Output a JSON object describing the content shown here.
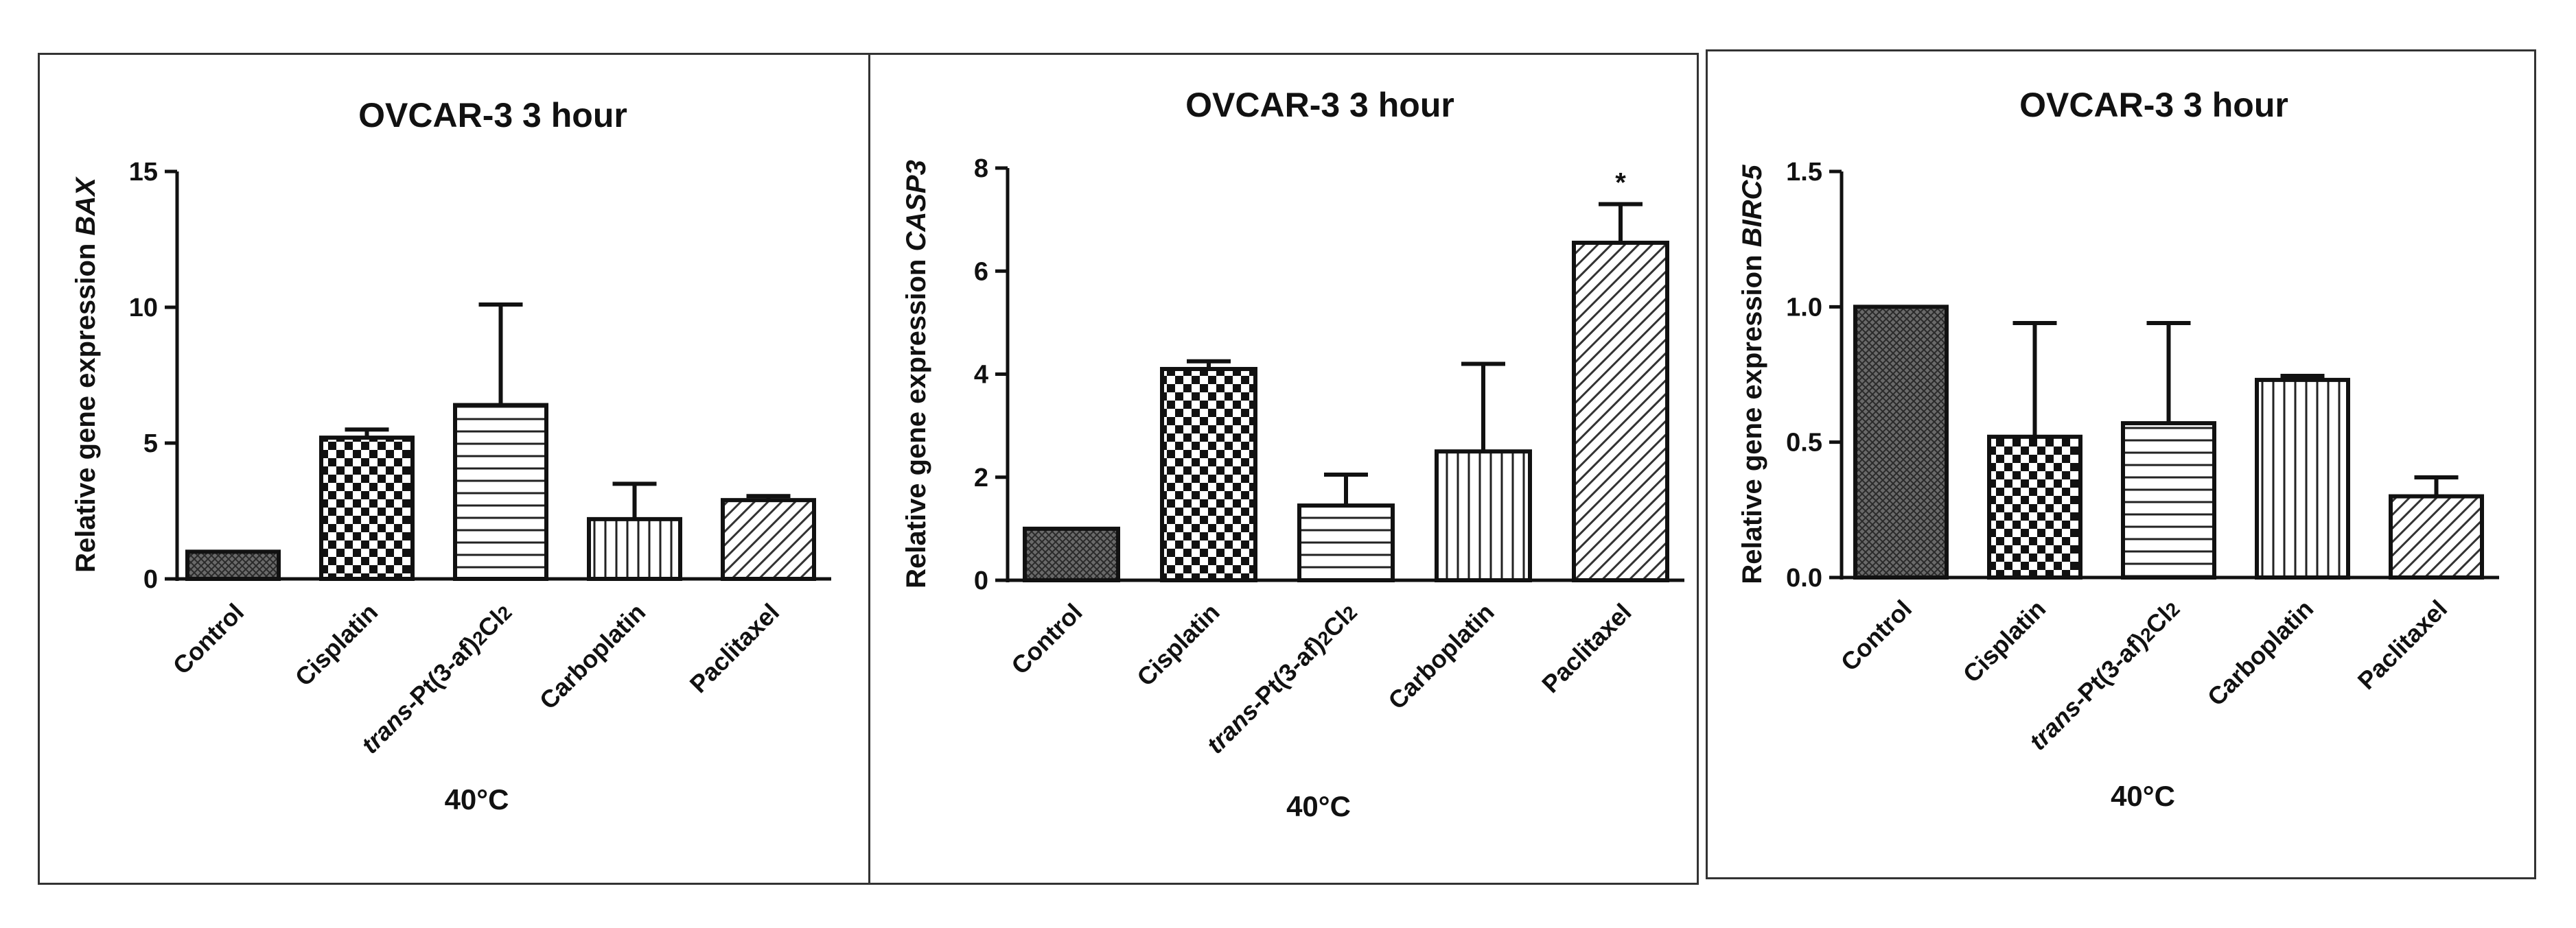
{
  "chart_data": [
    {
      "type": "bar",
      "title": "OVCAR-3 3 hour",
      "ylabel_prefix": "Relative gene expression ",
      "ylabel_gene": "BAX",
      "xlabel": "40°C",
      "categories": [
        "Control",
        "Cisplatin",
        "trans-Pt(3-af)2Cl2",
        "Carboplatin",
        "Paclitaxel"
      ],
      "values": [
        1.0,
        5.2,
        6.4,
        2.2,
        2.9
      ],
      "errors": [
        0.0,
        0.3,
        3.7,
        1.3,
        0.15
      ],
      "ylim": [
        0,
        15
      ],
      "yticks": [
        "0",
        "5",
        "10",
        "15"
      ],
      "ytick_values": [
        0,
        5,
        10,
        15
      ],
      "annotations": []
    },
    {
      "type": "bar",
      "title": "OVCAR-3 3 hour",
      "ylabel_prefix": "Relative gene expression ",
      "ylabel_gene": "CASP3",
      "xlabel": "40°C",
      "categories": [
        "Control",
        "Cisplatin",
        "trans-Pt(3-af)2Cl2",
        "Carboplatin",
        "Paclitaxel"
      ],
      "values": [
        1.0,
        4.1,
        1.45,
        2.5,
        6.55
      ],
      "errors": [
        0.0,
        0.15,
        0.6,
        1.7,
        0.75
      ],
      "ylim": [
        0,
        8
      ],
      "yticks": [
        "0",
        "2",
        "4",
        "6",
        "8"
      ],
      "ytick_values": [
        0,
        2,
        4,
        6,
        8
      ],
      "annotations": [
        {
          "category": "Paclitaxel",
          "text": "*"
        }
      ]
    },
    {
      "type": "bar",
      "title": "OVCAR-3 3 hour",
      "ylabel_prefix": "Relative gene expression ",
      "ylabel_gene": "BIRC5",
      "xlabel": "40°C",
      "categories": [
        "Control",
        "Cisplatin",
        "trans-Pt(3-af)2Cl2",
        "Carboplatin",
        "Paclitaxel"
      ],
      "values": [
        1.0,
        0.52,
        0.57,
        0.73,
        0.3
      ],
      "errors": [
        0.0,
        0.42,
        0.37,
        0.015,
        0.07
      ],
      "ylim": [
        0,
        1.5
      ],
      "yticks": [
        "0.0",
        "0.5",
        "1.0",
        "1.5"
      ],
      "ytick_values": [
        0,
        0.5,
        1.0,
        1.5
      ],
      "annotations": []
    }
  ]
}
